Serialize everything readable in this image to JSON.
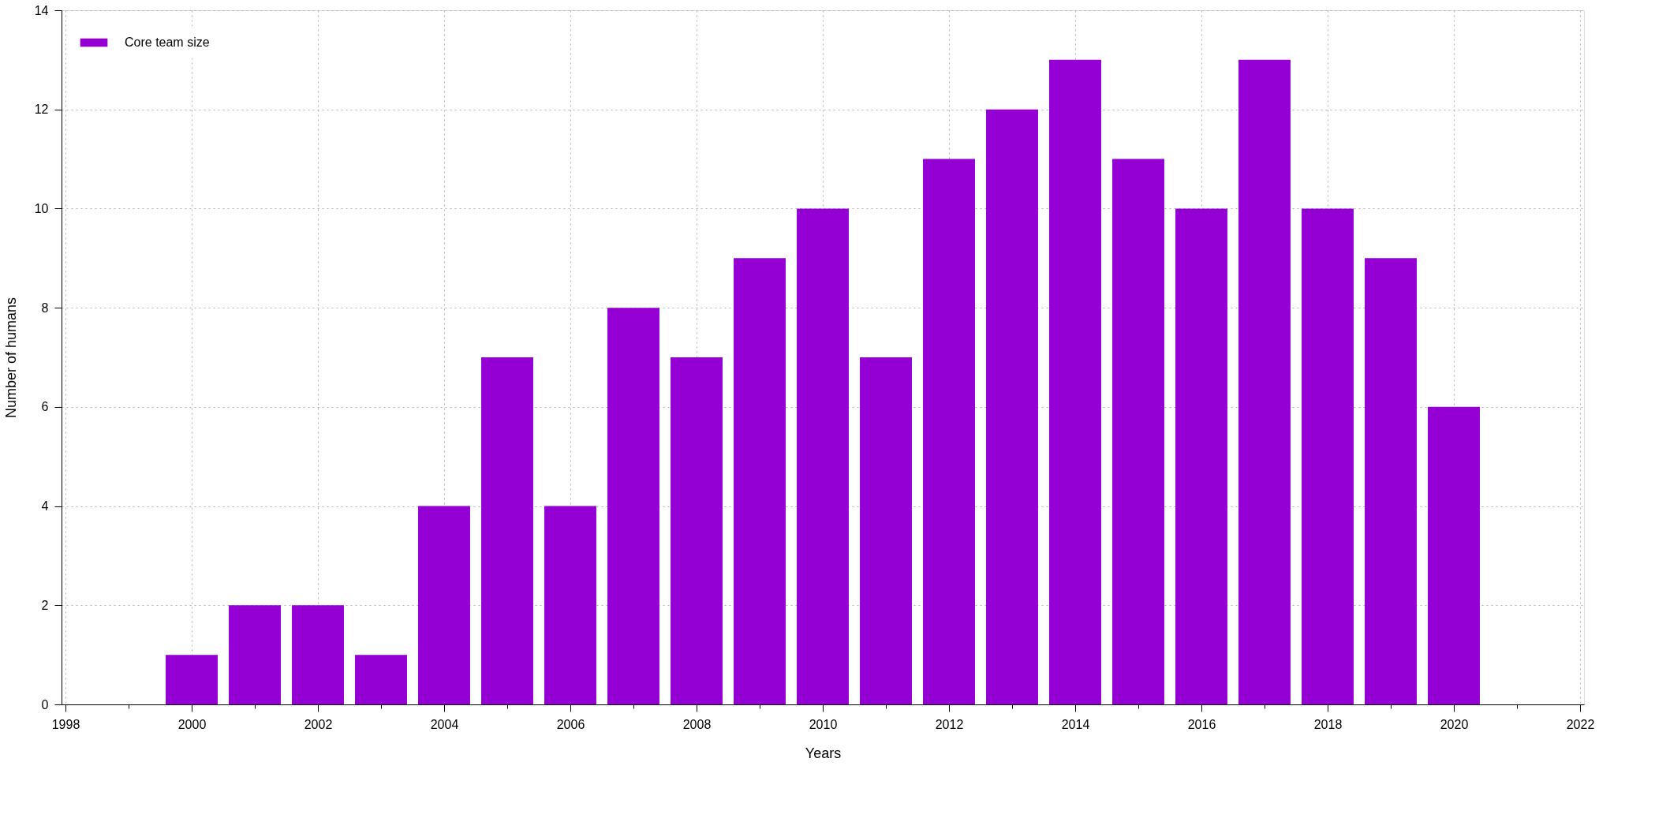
{
  "chart_data": {
    "type": "bar",
    "xlabel": "Years",
    "ylabel": "Number of humans",
    "x": [
      2000,
      2001,
      2002,
      2003,
      2004,
      2005,
      2006,
      2007,
      2008,
      2009,
      2010,
      2011,
      2012,
      2013,
      2014,
      2015,
      2016,
      2017,
      2018,
      2019,
      2020
    ],
    "series": [
      {
        "name": "Core team size",
        "color": "#9400d3",
        "values": [
          1,
          2,
          2,
          1,
          4,
          7,
          4,
          8,
          7,
          9,
          10,
          7,
          11,
          12,
          13,
          11,
          10,
          13,
          10,
          9,
          6
        ]
      }
    ],
    "xlim": [
      1998,
      2022
    ],
    "xticks": [
      1998,
      {
        "value": 1999,
        "label": null
      },
      2000,
      {
        "value": 2001,
        "label": null
      },
      2002,
      {
        "value": 2003,
        "label": null
      },
      2004,
      {
        "value": 2005,
        "label": null
      },
      2006,
      {
        "value": 2007,
        "label": null
      },
      2008,
      {
        "value": 2009,
        "label": null
      },
      2010,
      {
        "value": 2011,
        "label": null
      },
      2012,
      {
        "value": 2013,
        "label": null
      },
      2014,
      {
        "value": 2015,
        "label": null
      },
      2016,
      {
        "value": 2017,
        "label": null
      },
      2018,
      {
        "value": 2019,
        "label": null
      },
      2020,
      {
        "value": 2021,
        "label": null
      },
      2022
    ],
    "ylim": [
      0,
      14
    ],
    "yticks": [
      0,
      2,
      4,
      6,
      8,
      10,
      12,
      14
    ],
    "grid": true,
    "legend": "top left"
  }
}
